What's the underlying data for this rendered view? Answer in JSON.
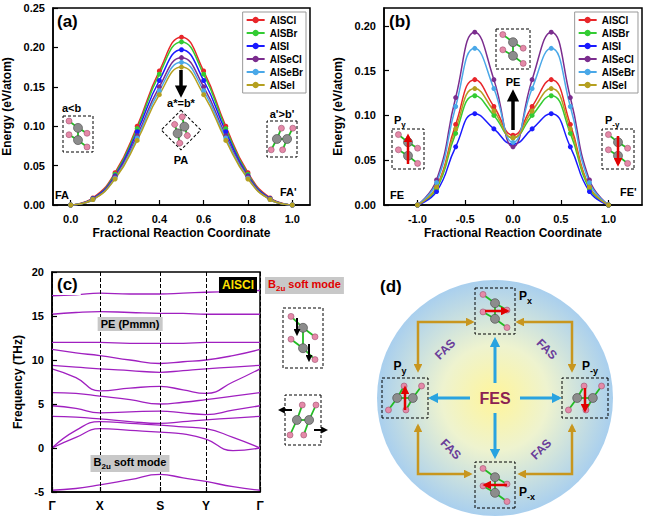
{
  "chart_data": [
    {
      "type": "line",
      "title": "(a)",
      "x_label": "Fractional Reaction Coordinate",
      "y_label": "Energy (eV/atom)",
      "x": [
        0,
        0.1,
        0.2,
        0.3,
        0.4,
        0.5,
        0.6,
        0.7,
        0.8,
        0.9,
        1
      ],
      "series": [
        {
          "name": "AlSCl",
          "color": "#e8262a",
          "values": [
            0,
            0.009,
            0.041,
            0.1,
            0.17,
            0.213,
            0.17,
            0.1,
            0.041,
            0.009,
            0
          ]
        },
        {
          "name": "AlSBr",
          "color": "#33cc33",
          "values": [
            0,
            0.008,
            0.039,
            0.097,
            0.166,
            0.207,
            0.166,
            0.097,
            0.039,
            0.008,
            0
          ]
        },
        {
          "name": "AlSI",
          "color": "#1a1aff",
          "values": [
            0,
            0.008,
            0.037,
            0.093,
            0.158,
            0.197,
            0.158,
            0.093,
            0.037,
            0.008,
            0
          ]
        },
        {
          "name": "AlSeCl",
          "color": "#7b2d8e",
          "values": [
            0,
            0.007,
            0.036,
            0.088,
            0.15,
            0.187,
            0.15,
            0.088,
            0.036,
            0.007,
            0
          ]
        },
        {
          "name": "AlSeBr",
          "color": "#4aa8e8",
          "values": [
            0,
            0.007,
            0.034,
            0.085,
            0.145,
            0.181,
            0.145,
            0.085,
            0.034,
            0.007,
            0
          ]
        },
        {
          "name": "AlSeI",
          "color": "#b5a020",
          "values": [
            0,
            0.007,
            0.033,
            0.082,
            0.14,
            0.175,
            0.14,
            0.082,
            0.033,
            0.007,
            0
          ]
        }
      ],
      "xlim": [
        -0.08,
        1.08
      ],
      "xticks": [
        {
          "value": 0,
          "label": "0.0"
        },
        {
          "value": 0.2,
          "label": "0.2"
        },
        {
          "value": 0.4,
          "label": "0.4"
        },
        {
          "value": 0.6,
          "label": "0.6"
        },
        {
          "value": 0.8,
          "label": "0.8"
        },
        {
          "value": 1,
          "label": "1.0"
        }
      ],
      "ylim": [
        0,
        0.25
      ],
      "yticks": [
        {
          "value": 0,
          "label": "0.00"
        },
        {
          "value": 0.05,
          "label": "0.05"
        },
        {
          "value": 0.1,
          "label": "0.10"
        },
        {
          "value": 0.15,
          "label": "0.15"
        },
        {
          "value": 0.2,
          "label": "0.20"
        },
        {
          "value": 0.25,
          "label": "0.25"
        }
      ],
      "grid": false,
      "legend": "upper right",
      "marker": "circle",
      "annotations": [
        "FA",
        "PA",
        "FA'",
        "a<b",
        "a*=b*",
        "a'>b'"
      ]
    },
    {
      "type": "line",
      "title": "(b)",
      "x_label": "Fractional Reaction Coordinate",
      "y_label": "Energy (eV/atom)",
      "x": [
        -1,
        -0.8,
        -0.6,
        -0.4,
        -0.2,
        0,
        0.2,
        0.4,
        0.6,
        0.8,
        1
      ],
      "series": [
        {
          "name": "AlSCl",
          "color": "#e8262a",
          "values": [
            0,
            0.02,
            0.09,
            0.14,
            0.11,
            0.078,
            0.11,
            0.14,
            0.09,
            0.02,
            0
          ]
        },
        {
          "name": "AlSBr",
          "color": "#33cc33",
          "values": [
            0,
            0.018,
            0.08,
            0.122,
            0.1,
            0.075,
            0.1,
            0.122,
            0.08,
            0.018,
            0
          ]
        },
        {
          "name": "AlSI",
          "color": "#1a1aff",
          "values": [
            0,
            0.015,
            0.065,
            0.102,
            0.085,
            0.068,
            0.085,
            0.102,
            0.065,
            0.015,
            0
          ]
        },
        {
          "name": "AlSeCl",
          "color": "#7b2d8e",
          "values": [
            0,
            0.028,
            0.12,
            0.193,
            0.14,
            0.065,
            0.14,
            0.193,
            0.12,
            0.028,
            0
          ]
        },
        {
          "name": "AlSeBr",
          "color": "#4aa8e8",
          "values": [
            0,
            0.025,
            0.11,
            0.175,
            0.13,
            0.07,
            0.13,
            0.175,
            0.11,
            0.025,
            0
          ]
        },
        {
          "name": "AlSeI",
          "color": "#b5a020",
          "values": [
            0,
            0.02,
            0.085,
            0.13,
            0.105,
            0.075,
            0.105,
            0.13,
            0.085,
            0.02,
            0
          ]
        }
      ],
      "xlim": [
        -1.35,
        1.35
      ],
      "xticks": [
        {
          "value": -1,
          "label": "-1.0"
        },
        {
          "value": -0.5,
          "label": "-0.5"
        },
        {
          "value": 0,
          "label": "0.0"
        },
        {
          "value": 0.5,
          "label": "0.5"
        },
        {
          "value": 1,
          "label": "1.0"
        }
      ],
      "ylim": [
        0,
        0.22
      ],
      "yticks": [
        {
          "value": 0,
          "label": "0.00"
        },
        {
          "value": 0.05,
          "label": "0.05"
        },
        {
          "value": 0.1,
          "label": "0.10"
        },
        {
          "value": 0.15,
          "label": "0.15"
        },
        {
          "value": 0.2,
          "label": "0.20"
        }
      ],
      "grid": false,
      "legend": "upper right",
      "marker": "circle",
      "annotations": [
        "FE",
        "PE",
        "FE'",
        {
          "base": "P",
          "sub": "y"
        },
        {
          "base": "P",
          "sub": "-y"
        }
      ]
    },
    {
      "type": "line",
      "title": "(c)",
      "y_label": "Frequency (THz)",
      "color": "#a020c0",
      "x": [
        0,
        0.115,
        0.23,
        0.375,
        0.52,
        0.63,
        0.74,
        0.87,
        1
      ],
      "bands": [
        [
          17.3,
          17.4,
          17.6,
          17.5,
          17.5,
          17.6,
          17.7,
          17.8,
          17.9
        ],
        [
          15.2,
          15.4,
          15.5,
          15.4,
          15.3,
          15.3,
          15.2,
          15.2,
          15.2
        ],
        [
          12.0,
          12.0,
          12.0,
          11.9,
          11.9,
          11.9,
          12.0,
          12.0,
          12.0
        ],
        [
          11.2,
          10.8,
          10.5,
          10.0,
          9.6,
          9.8,
          10.0,
          10.5,
          11.2
        ],
        [
          9.4,
          9.2,
          9.0,
          8.8,
          8.6,
          8.8,
          9.0,
          9.2,
          9.4
        ],
        [
          9.0,
          8.0,
          6.5,
          6.8,
          7.0,
          6.6,
          6.2,
          7.5,
          9.0
        ],
        [
          6.3,
          6.2,
          5.9,
          5.5,
          5.0,
          5.2,
          5.5,
          5.9,
          6.3
        ],
        [
          4.8,
          4.5,
          4.0,
          4.1,
          4.2,
          4.0,
          3.8,
          4.3,
          4.8
        ],
        [
          3.6,
          3.5,
          3.3,
          3.0,
          2.8,
          3.0,
          3.2,
          3.4,
          3.6
        ],
        [
          0,
          2.0,
          3.0,
          2.8,
          2.6,
          2.4,
          2.2,
          1.2,
          0
        ],
        [
          0,
          1.2,
          2.2,
          2.0,
          1.8,
          1.6,
          1.0,
          -0.3,
          0
        ],
        [
          -4.8,
          -4.6,
          -4.2,
          -3.6,
          -3.0,
          -3.4,
          -3.8,
          -4.4,
          -4.8
        ]
      ],
      "xlim": [
        0,
        1
      ],
      "xticks": [
        {
          "value": 0,
          "label": "Γ"
        },
        {
          "value": 0.23,
          "label": "X"
        },
        {
          "value": 0.52,
          "label": "S"
        },
        {
          "value": 0.74,
          "label": "Y"
        },
        {
          "value": 1,
          "label": "Γ"
        }
      ],
      "ylim": [
        -5,
        20
      ],
      "yticks": [
        -5,
        0,
        5,
        10,
        15,
        20
      ],
      "grid": true,
      "annotations": [
        "AlSCl",
        "PE (Pmmn)",
        {
          "base": "B",
          "sub": "2u",
          "tail": " soft mode"
        },
        {
          "base": "B",
          "sub": "2u",
          "tail": " soft mode"
        }
      ]
    }
  ],
  "diagram": {
    "title": "(d)",
    "center": "FES",
    "corners": [
      "FAS",
      "FAS",
      "FAS",
      "FAS"
    ],
    "states": [
      {
        "base": "P",
        "sub": "x"
      },
      {
        "base": "P",
        "sub": "-y"
      },
      {
        "base": "P",
        "sub": "-x"
      },
      {
        "base": "P",
        "sub": "y"
      }
    ]
  }
}
